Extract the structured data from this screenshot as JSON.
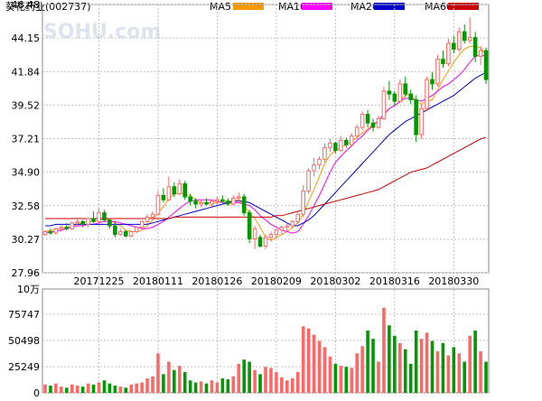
{
  "header": {
    "stock_label": "葵花药业(002737)",
    "watermark": "SOHU.com",
    "legend": [
      {
        "name": "MA5",
        "color": "#ff9900"
      },
      {
        "name": "MA10",
        "color": "#ff00ff"
      },
      {
        "name": "MA20",
        "color": "#0000cc"
      },
      {
        "name": "MA60",
        "color": "#cc0000"
      }
    ]
  },
  "colors": {
    "up": "#ff6666",
    "down": "#009900",
    "grid": "#c0c0c0",
    "axis_text": "#000000",
    "background": "#ffffff"
  },
  "chart_data": [
    {
      "type": "candlestick",
      "panel": "price",
      "ylim": [
        27.96,
        46.48
      ],
      "y_ticks": [
        "46.48",
        "44.15",
        "41.84",
        "39.52",
        "37.21",
        "34.90",
        "32.58",
        "30.27",
        "27.96"
      ],
      "x_tick_labels": [
        "20171225",
        "20180111",
        "20180126",
        "20180209",
        "20180302",
        "20180316",
        "20180330"
      ],
      "x_tick_index": [
        10,
        21,
        32,
        43,
        54,
        65,
        76
      ],
      "grid": true,
      "ohlc": [
        [
          30.6,
          30.9,
          30.5,
          30.8
        ],
        [
          30.8,
          31.0,
          30.6,
          30.7
        ],
        [
          30.7,
          31.1,
          30.6,
          31.0
        ],
        [
          31.0,
          31.3,
          30.8,
          31.1
        ],
        [
          31.1,
          31.4,
          30.9,
          31.0
        ],
        [
          31.0,
          31.5,
          30.9,
          31.4
        ],
        [
          31.4,
          31.7,
          31.2,
          31.5
        ],
        [
          31.5,
          31.6,
          31.1,
          31.3
        ],
        [
          31.3,
          31.8,
          31.1,
          31.7
        ],
        [
          31.7,
          32.2,
          31.4,
          31.5
        ],
        [
          31.5,
          32.4,
          31.4,
          32.1
        ],
        [
          32.1,
          32.3,
          31.5,
          31.6
        ],
        [
          31.6,
          31.7,
          31.0,
          31.2
        ],
        [
          31.2,
          31.5,
          30.4,
          30.6
        ],
        [
          30.6,
          31.0,
          30.5,
          30.8
        ],
        [
          30.8,
          30.9,
          30.4,
          30.5
        ],
        [
          30.5,
          30.9,
          30.4,
          30.8
        ],
        [
          30.8,
          31.2,
          30.7,
          31.1
        ],
        [
          31.1,
          31.6,
          31.0,
          31.5
        ],
        [
          31.5,
          32.0,
          31.3,
          31.8
        ],
        [
          31.8,
          32.2,
          31.6,
          32.0
        ],
        [
          32.0,
          33.6,
          31.9,
          33.3
        ],
        [
          33.3,
          33.8,
          32.8,
          33.0
        ],
        [
          33.0,
          34.6,
          32.9,
          33.9
        ],
        [
          33.9,
          34.2,
          33.2,
          33.4
        ],
        [
          33.4,
          34.4,
          33.3,
          34.1
        ],
        [
          34.1,
          34.3,
          33.0,
          33.2
        ],
        [
          33.2,
          33.4,
          32.6,
          32.9
        ],
        [
          32.9,
          33.1,
          32.4,
          32.7
        ],
        [
          32.7,
          33.0,
          32.5,
          32.8
        ],
        [
          32.8,
          33.1,
          32.6,
          32.7
        ],
        [
          32.7,
          33.0,
          32.5,
          32.9
        ],
        [
          32.9,
          33.2,
          32.7,
          33.0
        ],
        [
          33.0,
          33.3,
          32.8,
          32.9
        ],
        [
          32.9,
          33.1,
          32.6,
          32.7
        ],
        [
          32.7,
          33.3,
          32.6,
          33.1
        ],
        [
          33.1,
          33.5,
          32.9,
          33.2
        ],
        [
          33.2,
          33.4,
          31.9,
          32.1
        ],
        [
          32.1,
          32.3,
          30.0,
          30.3
        ],
        [
          30.3,
          31.2,
          29.6,
          31.0
        ],
        [
          30.4,
          30.6,
          29.7,
          29.8
        ],
        [
          29.8,
          30.6,
          29.6,
          30.4
        ],
        [
          30.4,
          30.8,
          30.1,
          30.6
        ],
        [
          30.6,
          31.0,
          30.3,
          30.9
        ],
        [
          30.9,
          31.2,
          30.6,
          31.1
        ],
        [
          31.1,
          31.4,
          30.8,
          31.2
        ],
        [
          31.2,
          31.6,
          31.0,
          31.5
        ],
        [
          31.5,
          32.2,
          31.3,
          32.0
        ],
        [
          32.0,
          34.0,
          31.8,
          33.6
        ],
        [
          33.6,
          35.2,
          33.4,
          35.0
        ],
        [
          35.0,
          35.9,
          34.6,
          35.4
        ],
        [
          35.4,
          36.0,
          35.1,
          35.8
        ],
        [
          35.8,
          36.9,
          35.6,
          36.6
        ],
        [
          36.6,
          37.2,
          36.3,
          36.9
        ],
        [
          36.9,
          37.0,
          36.2,
          36.4
        ],
        [
          36.4,
          37.4,
          36.3,
          37.1
        ],
        [
          37.1,
          37.3,
          36.6,
          36.8
        ],
        [
          36.8,
          37.6,
          36.7,
          37.4
        ],
        [
          37.4,
          38.2,
          37.2,
          38.0
        ],
        [
          38.0,
          39.1,
          37.8,
          38.9
        ],
        [
          38.9,
          39.2,
          38.0,
          38.3
        ],
        [
          38.3,
          38.6,
          37.7,
          38.0
        ],
        [
          38.0,
          38.8,
          37.9,
          38.6
        ],
        [
          38.6,
          40.8,
          38.5,
          40.5
        ],
        [
          40.5,
          41.2,
          39.9,
          40.3
        ],
        [
          40.3,
          40.5,
          39.5,
          39.8
        ],
        [
          39.8,
          41.3,
          39.7,
          41.0
        ],
        [
          41.0,
          41.5,
          40.1,
          40.3
        ],
        [
          40.3,
          40.6,
          39.6,
          39.9
        ],
        [
          39.9,
          40.2,
          37.0,
          37.5
        ],
        [
          37.5,
          39.6,
          37.2,
          39.3
        ],
        [
          39.3,
          41.5,
          39.1,
          41.3
        ],
        [
          41.3,
          41.8,
          40.6,
          41.0
        ],
        [
          41.0,
          43.0,
          40.8,
          42.7
        ],
        [
          42.7,
          43.3,
          42.1,
          42.4
        ],
        [
          42.4,
          44.1,
          42.2,
          43.8
        ],
        [
          43.8,
          44.3,
          43.1,
          43.4
        ],
        [
          43.4,
          44.9,
          43.2,
          44.6
        ],
        [
          44.6,
          45.1,
          43.8,
          44.0
        ],
        [
          44.0,
          45.6,
          43.8,
          44.2
        ],
        [
          44.2,
          44.6,
          42.5,
          42.9
        ],
        [
          42.9,
          43.6,
          42.3,
          43.3
        ],
        [
          43.3,
          43.5,
          41.0,
          41.3
        ]
      ],
      "series": [
        {
          "name": "MA5",
          "color": "#ff9900",
          "values": [
            30.8,
            30.9,
            30.9,
            31.0,
            31.1,
            31.2,
            31.3,
            31.4,
            31.5,
            31.5,
            31.6,
            31.7,
            31.6,
            31.4,
            31.2,
            30.9,
            30.8,
            30.8,
            30.9,
            31.2,
            31.6,
            32.1,
            32.5,
            33.1,
            33.4,
            33.5,
            33.4,
            33.3,
            33.0,
            32.8,
            32.8,
            32.8,
            32.8,
            32.9,
            32.9,
            32.9,
            33.0,
            32.6,
            32.1,
            31.7,
            31.1,
            30.4,
            30.2,
            30.4,
            30.6,
            30.8,
            31.1,
            31.4,
            32.0,
            32.9,
            33.7,
            34.6,
            35.5,
            36.1,
            36.4,
            36.6,
            36.8,
            37.0,
            37.3,
            37.6,
            37.9,
            38.2,
            38.4,
            38.9,
            39.3,
            39.5,
            39.8,
            40.2,
            40.3,
            39.8,
            39.6,
            39.8,
            39.9,
            40.6,
            41.3,
            41.9,
            42.5,
            43.0,
            43.4,
            43.6,
            43.6,
            43.5,
            43.0
          ],
          "start_index": 0
        },
        {
          "name": "MA10",
          "color": "#ff00ff",
          "values": [
            30.7,
            30.8,
            30.8,
            30.9,
            31.0,
            31.1,
            31.2,
            31.2,
            31.3,
            31.3,
            31.4,
            31.5,
            31.5,
            31.5,
            31.4,
            31.3,
            31.2,
            31.1,
            31.0,
            31.0,
            31.1,
            31.3,
            31.5,
            31.8,
            32.1,
            32.4,
            32.7,
            32.9,
            33.0,
            33.0,
            33.0,
            33.0,
            32.9,
            32.8,
            32.8,
            32.8,
            32.8,
            32.7,
            32.6,
            32.3,
            31.9,
            31.6,
            31.3,
            31.1,
            30.9,
            30.8,
            30.7,
            30.8,
            31.3,
            31.9,
            32.6,
            33.3,
            34.1,
            34.9,
            35.6,
            36.0,
            36.4,
            36.7,
            37.1,
            37.4,
            37.8,
            38.1,
            38.5,
            38.9,
            39.3,
            39.5,
            39.8,
            40.0,
            40.0,
            39.9,
            39.8,
            40.0,
            40.2,
            40.5,
            40.8,
            41.0,
            41.3,
            41.6,
            42.0,
            42.5,
            42.9,
            43.0,
            42.9
          ],
          "start_index": 0
        },
        {
          "name": "MA20",
          "color": "#0000cc",
          "values": [
            31.2,
            31.2,
            31.3,
            31.3,
            31.3,
            31.3,
            31.3,
            31.3,
            31.3,
            31.3,
            31.3,
            31.3,
            31.3,
            31.3,
            31.3,
            31.3,
            31.3,
            31.3,
            31.3,
            31.3,
            31.4,
            31.5,
            31.6,
            31.7,
            31.8,
            31.9,
            32.0,
            32.1,
            32.2,
            32.3,
            32.4,
            32.5,
            32.6,
            32.7,
            32.8,
            32.9,
            32.9,
            32.9,
            32.8,
            32.6,
            32.4,
            32.2,
            32.0,
            31.8,
            31.6,
            31.4,
            31.2,
            31.2,
            31.4,
            31.6,
            31.9,
            32.3,
            32.7,
            33.1,
            33.5,
            33.9,
            34.3,
            34.7,
            35.1,
            35.5,
            35.9,
            36.3,
            36.7,
            37.1,
            37.5,
            37.8,
            38.1,
            38.4,
            38.6,
            38.8,
            39.0,
            39.2,
            39.4,
            39.6,
            39.8,
            40.0,
            40.2,
            40.5,
            40.8,
            41.1,
            41.4,
            41.6,
            41.8
          ],
          "start_index": 0
        },
        {
          "name": "MA60",
          "color": "#cc0000",
          "values": [
            31.7,
            31.7,
            31.7,
            31.7,
            31.7,
            31.7,
            31.7,
            31.7,
            31.7,
            31.7,
            31.7,
            31.7,
            31.7,
            31.7,
            31.7,
            31.7,
            31.7,
            31.7,
            31.7,
            31.7,
            31.7,
            31.7,
            31.7,
            31.7,
            31.8,
            31.8,
            31.8,
            31.8,
            31.8,
            31.8,
            31.8,
            31.8,
            31.8,
            31.8,
            31.8,
            31.8,
            31.8,
            31.8,
            31.8,
            31.8,
            31.8,
            31.8,
            31.8,
            31.9,
            31.9,
            32.0,
            32.1,
            32.2,
            32.3,
            32.4,
            32.5,
            32.6,
            32.7,
            32.8,
            32.9,
            33.0,
            33.1,
            33.2,
            33.3,
            33.4,
            33.5,
            33.6,
            33.7,
            33.9,
            34.1,
            34.3,
            34.5,
            34.7,
            34.9,
            35.0,
            35.1,
            35.2,
            35.4,
            35.6,
            35.8,
            36.0,
            36.2,
            36.4,
            36.6,
            36.8,
            37.0,
            37.2,
            37.3
          ],
          "start_index": 0
        }
      ]
    },
    {
      "type": "bar",
      "panel": "volume",
      "unit_label": "10万",
      "ylim": [
        0,
        100000
      ],
      "y_ticks": [
        "75747",
        "50498",
        "25249",
        "0"
      ],
      "y_tick_values": [
        75747,
        50498,
        25249,
        0
      ],
      "values": [
        8000,
        7000,
        9000,
        6000,
        5000,
        8000,
        7000,
        6000,
        9000,
        8000,
        10000,
        12000,
        9000,
        7000,
        6000,
        5000,
        8000,
        9000,
        10000,
        14000,
        16000,
        38000,
        18000,
        30000,
        22000,
        26000,
        20000,
        12000,
        10000,
        11000,
        9000,
        12000,
        10000,
        14000,
        13000,
        16000,
        28000,
        32000,
        30000,
        22000,
        18000,
        25000,
        24000,
        20000,
        15000,
        12000,
        14000,
        20000,
        64000,
        62000,
        56000,
        50000,
        44000,
        35000,
        28000,
        26000,
        25000,
        24000,
        38000,
        45000,
        60000,
        52000,
        30000,
        82000,
        65000,
        55000,
        48000,
        42000,
        28000,
        60000,
        52000,
        58000,
        50000,
        40000,
        48000,
        36000,
        44000,
        38000,
        30000,
        55000,
        60000,
        40000,
        30000
      ],
      "colors_by_index": "follow-candle"
    }
  ]
}
